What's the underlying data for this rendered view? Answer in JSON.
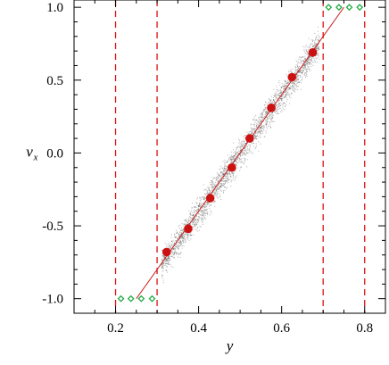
{
  "chart_data": {
    "type": "scatter",
    "xlabel": "y",
    "ylabel": {
      "main": "v",
      "subscript": "x"
    },
    "xlim": [
      0.1,
      0.85
    ],
    "ylim": [
      -1.1,
      1.05
    ],
    "xticks": [
      0.2,
      0.4,
      0.6,
      0.8
    ],
    "xtick_labels": [
      "0.2",
      "0.4",
      "0.6",
      "0.8"
    ],
    "yticks": [
      -1.0,
      -0.5,
      0.0,
      0.5,
      1.0
    ],
    "ytick_labels": [
      "-1.0",
      "-0.5",
      "0.0",
      "0.5",
      "1.0"
    ],
    "grid": false,
    "colors": {
      "fit": "#cc2222",
      "points": "#cc1111",
      "diamonds": "#22aa44",
      "scatter": "#555555",
      "vlines": "#dd1111"
    },
    "vertical_dashed_lines_x": [
      0.2,
      0.3,
      0.7,
      0.8
    ],
    "fit_line": {
      "x": [
        0.25,
        0.75
      ],
      "y": [
        -1.0,
        1.0
      ]
    },
    "series": [
      {
        "marker": "filled-circle",
        "x": [
          0.323,
          0.375,
          0.428,
          0.48,
          0.523,
          0.575,
          0.625,
          0.675
        ],
        "y": [
          -0.68,
          -0.52,
          -0.31,
          -0.1,
          0.1,
          0.31,
          0.52,
          0.69
        ]
      },
      {
        "marker": "open-diamond",
        "x": [
          0.213,
          0.237,
          0.262,
          0.288,
          0.713,
          0.738,
          0.763,
          0.788
        ],
        "y": [
          -1.0,
          -1.0,
          -1.0,
          -1.0,
          1.0,
          1.0,
          1.0,
          1.0
        ]
      }
    ],
    "background_cloud": {
      "x_range": [
        0.31,
        0.69
      ],
      "spread_y": 0.07
    }
  }
}
